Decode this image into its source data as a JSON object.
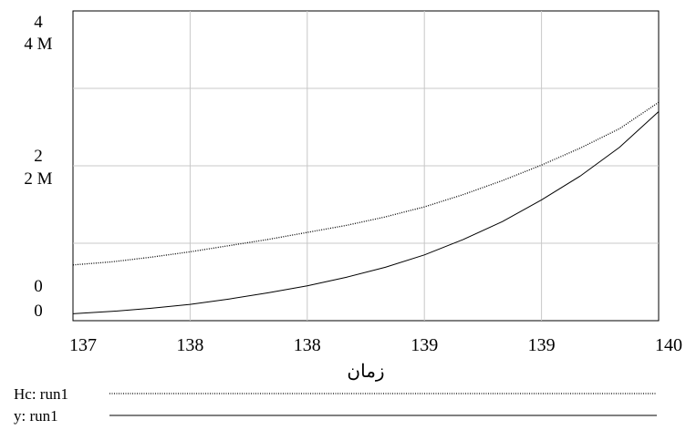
{
  "chart_data": {
    "type": "line",
    "grid": true,
    "xlabel": "زمان",
    "x_ticks": [
      "137",
      "138",
      "138",
      "139",
      "139",
      "140"
    ],
    "x_range": [
      137,
      140
    ],
    "y_left_ticks": [
      {
        "top": "4",
        "bottom": "4 M"
      },
      {
        "top": "2",
        "bottom": "2 M"
      },
      {
        "top": "0",
        "bottom": "0"
      }
    ],
    "ylim": [
      0,
      4
    ],
    "ylim_secondary": [
      0,
      4000000
    ],
    "series": [
      {
        "name": "Hc: run1",
        "line_style": "dotted",
        "x": [
          137,
          137.2,
          137.4,
          137.6,
          137.8,
          138,
          138.2,
          138.4,
          138.6,
          138.8,
          139,
          139.2,
          139.4,
          139.6,
          139.8,
          140
        ],
        "y": [
          0.72,
          0.76,
          0.82,
          0.89,
          0.97,
          1.05,
          1.14,
          1.23,
          1.34,
          1.47,
          1.63,
          1.81,
          2.01,
          2.23,
          2.48,
          2.82
        ]
      },
      {
        "name": "y: run1",
        "line_style": "solid",
        "x": [
          137,
          137.2,
          137.4,
          137.6,
          137.8,
          138,
          138.2,
          138.4,
          138.6,
          138.8,
          139,
          139.2,
          139.4,
          139.6,
          139.8,
          140
        ],
        "y": [
          0.09,
          0.12,
          0.16,
          0.21,
          0.28,
          0.36,
          0.45,
          0.56,
          0.69,
          0.85,
          1.05,
          1.28,
          1.56,
          1.87,
          2.24,
          2.7
        ]
      }
    ]
  }
}
